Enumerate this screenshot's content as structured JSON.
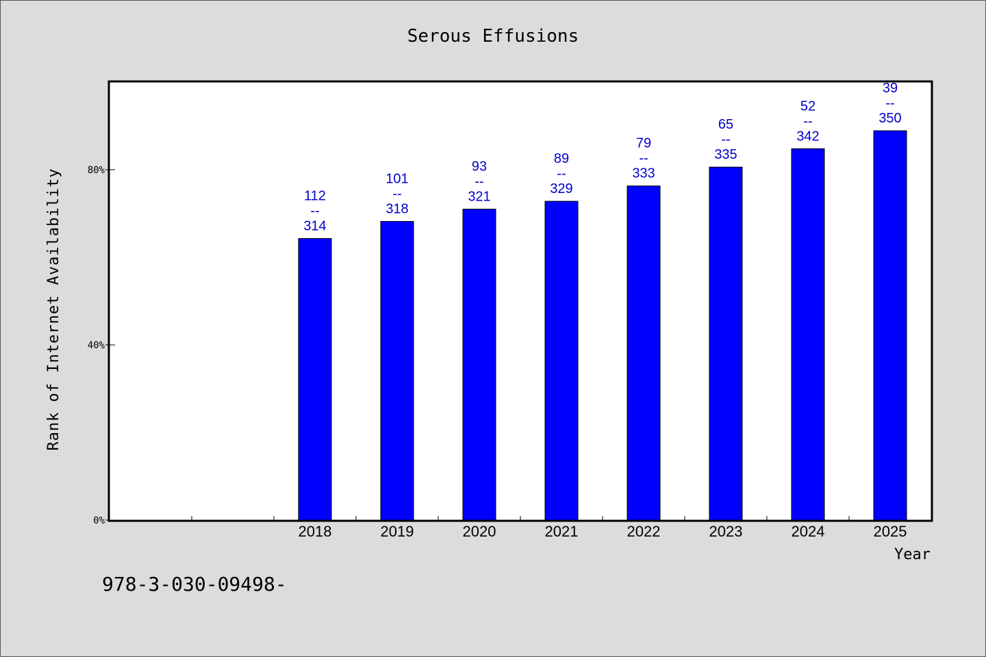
{
  "chart_data": {
    "type": "bar",
    "title": "Serous Effusions",
    "xlabel": "Year",
    "ylabel": "Rank of Internet Availability",
    "categories": [
      "",
      "",
      "2018",
      "2019",
      "2020",
      "2021",
      "2022",
      "2023",
      "2024",
      "2025"
    ],
    "values": [
      null,
      null,
      64.3,
      68.2,
      71.0,
      72.8,
      76.3,
      80.6,
      84.8,
      88.9
    ],
    "data_labels": [
      null,
      null,
      {
        "top": "112",
        "mid": "--",
        "bottom": "314"
      },
      {
        "top": "101",
        "mid": "--",
        "bottom": "318"
      },
      {
        "top": "93",
        "mid": "--",
        "bottom": "321"
      },
      {
        "top": "89",
        "mid": "--",
        "bottom": "329"
      },
      {
        "top": "79",
        "mid": "--",
        "bottom": "333"
      },
      {
        "top": "65",
        "mid": "--",
        "bottom": "335"
      },
      {
        "top": "52",
        "mid": "--",
        "bottom": "342"
      },
      {
        "top": "39",
        "mid": "--",
        "bottom": "350"
      }
    ],
    "y_ticks": [
      {
        "value": 0,
        "label": "0%"
      },
      {
        "value": 40,
        "label": "40%"
      },
      {
        "value": 80,
        "label": "80%"
      }
    ],
    "ylim": [
      0,
      100
    ],
    "grid": false,
    "colors": {
      "bar": "#0000ff",
      "label": "#0000cc",
      "background": "#dcdcdc",
      "plot": "#ffffff"
    }
  },
  "footer_text": "978-3-030-09498-"
}
